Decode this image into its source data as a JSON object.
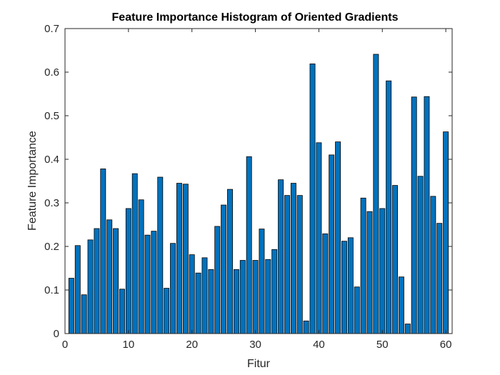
{
  "chart_data": {
    "type": "bar",
    "title": "Feature Importance  Histogram of Oriented Gradients",
    "xlabel": "Fitur",
    "ylabel": "Feature Importance",
    "xlim": [
      0,
      61
    ],
    "ylim": [
      0,
      0.7
    ],
    "xticks": [
      "0",
      "10",
      "20",
      "30",
      "40",
      "50",
      "60"
    ],
    "yticks": [
      "0",
      "0.1",
      "0.2",
      "0.3",
      "0.4",
      "0.5",
      "0.6",
      "0.7"
    ],
    "grid": false,
    "bar_color": "#0072BD",
    "bar_edge_color": "#000000",
    "x": [
      1,
      2,
      3,
      4,
      5,
      6,
      7,
      8,
      9,
      10,
      11,
      12,
      13,
      14,
      15,
      16,
      17,
      18,
      19,
      20,
      21,
      22,
      23,
      24,
      25,
      26,
      27,
      28,
      29,
      30,
      31,
      32,
      33,
      34,
      35,
      36,
      37,
      38,
      39,
      40,
      41,
      42,
      43,
      44,
      45,
      46,
      47,
      48,
      49,
      50,
      51,
      52,
      53,
      54,
      55,
      56,
      57,
      58,
      59,
      60
    ],
    "values": [
      0.127,
      0.202,
      0.089,
      0.215,
      0.241,
      0.378,
      0.261,
      0.241,
      0.102,
      0.287,
      0.367,
      0.307,
      0.226,
      0.235,
      0.359,
      0.104,
      0.207,
      0.345,
      0.343,
      0.181,
      0.139,
      0.174,
      0.147,
      0.246,
      0.295,
      0.331,
      0.147,
      0.168,
      0.406,
      0.168,
      0.24,
      0.17,
      0.193,
      0.353,
      0.317,
      0.345,
      0.317,
      0.029,
      0.619,
      0.438,
      0.229,
      0.41,
      0.44,
      0.212,
      0.22,
      0.107,
      0.311,
      0.28,
      0.641,
      0.287,
      0.58,
      0.34,
      0.13,
      0.022,
      0.543,
      0.361,
      0.544,
      0.315,
      0.253,
      0.463
    ]
  }
}
